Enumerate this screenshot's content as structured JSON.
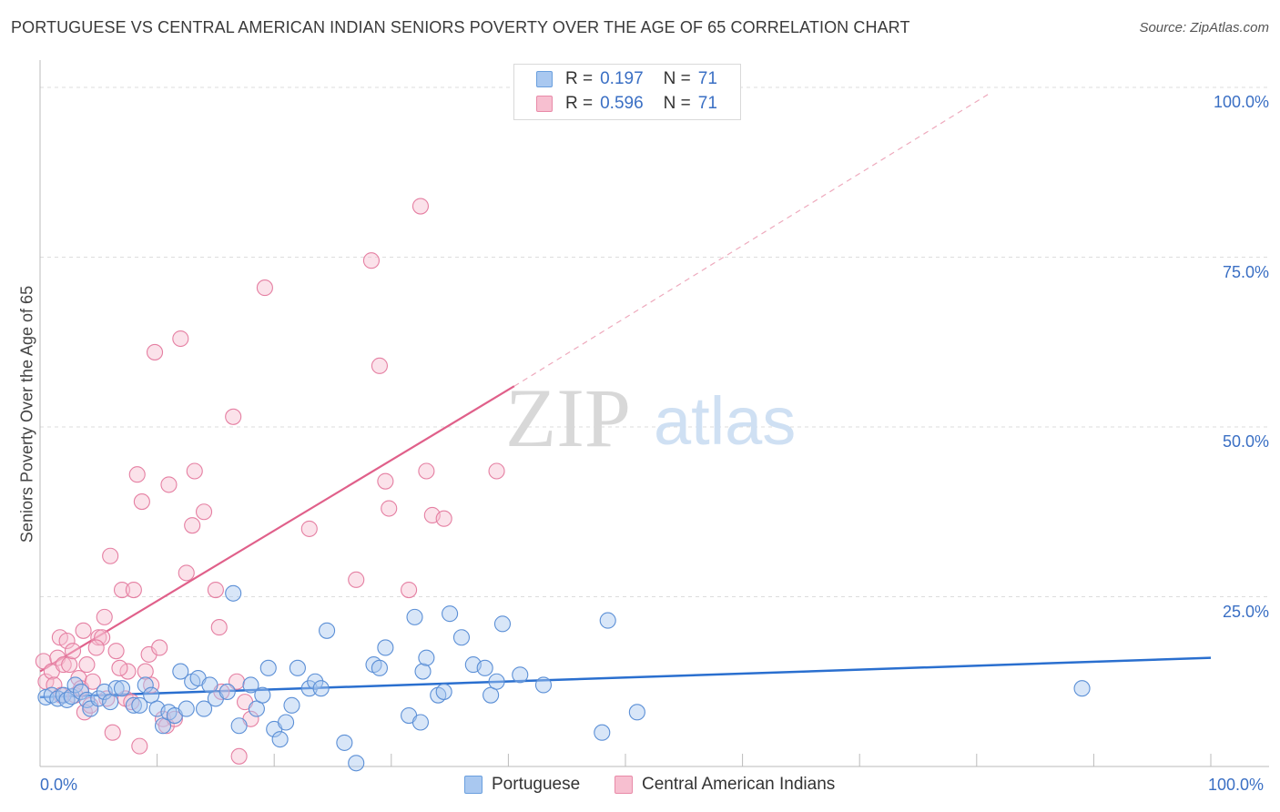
{
  "title": "PORTUGUESE VS CENTRAL AMERICAN INDIAN SENIORS POVERTY OVER THE AGE OF 65 CORRELATION CHART",
  "source": "Source: ZipAtlas.com",
  "watermark": {
    "zip": "ZIP",
    "atlas": "atlas"
  },
  "legend": {
    "rows": [
      {
        "r_label": "R =",
        "r_value": "0.197",
        "n_label": "N =",
        "n_value": "71",
        "color": "#a9c8f0",
        "border": "#6a9fde"
      },
      {
        "r_label": "R =",
        "r_value": "0.596",
        "n_label": "N =",
        "n_value": "71",
        "color": "#f7bfd0",
        "border": "#e88aa8"
      }
    ]
  },
  "bottom_legend": [
    "Portuguese",
    "Central American Indians"
  ],
  "colors": {
    "portuguese_fill": "#a9c8f0",
    "portuguese_stroke": "#5b8fd6",
    "portuguese_line": "#2a6fcf",
    "cai_fill": "#f7bfd0",
    "cai_stroke": "#e57fa2",
    "cai_line": "#e0608a",
    "tick_text": "#3a6fc4",
    "grid": "#dddddd"
  },
  "chart_data": {
    "type": "scatter",
    "title": "PORTUGUESE VS CENTRAL AMERICAN INDIAN SENIORS POVERTY OVER THE AGE OF 65 CORRELATION CHART",
    "xlabel": "",
    "ylabel": "Seniors Poverty Over the Age of 65",
    "xlim": [
      0,
      100
    ],
    "ylim": [
      0,
      100
    ],
    "x_tick_labels": [
      "0.0%",
      "100.0%"
    ],
    "y_tick_labels": [
      "25.0%",
      "50.0%",
      "75.0%",
      "100.0%"
    ],
    "y_ticks": [
      25,
      50,
      75,
      100
    ],
    "grid": true,
    "legend_position": "top-center",
    "series": [
      {
        "name": "Portuguese",
        "trend": {
          "x": [
            0,
            100
          ],
          "y": [
            10.2,
            16.0
          ],
          "dashed_extension": false
        },
        "points": [
          [
            0.5,
            10.2
          ],
          [
            1,
            10.5
          ],
          [
            1.5,
            10
          ],
          [
            2,
            10.5
          ],
          [
            2.3,
            9.8
          ],
          [
            2.7,
            10.3
          ],
          [
            3,
            12
          ],
          [
            3.5,
            11
          ],
          [
            4,
            9.8
          ],
          [
            4.3,
            8.5
          ],
          [
            5,
            10
          ],
          [
            5.5,
            11
          ],
          [
            6,
            9.5
          ],
          [
            6.5,
            11.5
          ],
          [
            7,
            11.5
          ],
          [
            8,
            9
          ],
          [
            8.5,
            9
          ],
          [
            9,
            12
          ],
          [
            9.5,
            10.5
          ],
          [
            10,
            8.5
          ],
          [
            10.5,
            6
          ],
          [
            11,
            8
          ],
          [
            11.5,
            7.5
          ],
          [
            12,
            14
          ],
          [
            12.5,
            8.5
          ],
          [
            13,
            12.5
          ],
          [
            13.5,
            13
          ],
          [
            14,
            8.5
          ],
          [
            14.5,
            12
          ],
          [
            15,
            10
          ],
          [
            16,
            11
          ],
          [
            16.5,
            25.5
          ],
          [
            17,
            6
          ],
          [
            18,
            12
          ],
          [
            18.5,
            8.5
          ],
          [
            19,
            10.5
          ],
          [
            19.5,
            14.5
          ],
          [
            20,
            5.5
          ],
          [
            20.5,
            4
          ],
          [
            21,
            6.5
          ],
          [
            21.5,
            9
          ],
          [
            22,
            14.5
          ],
          [
            23,
            11.5
          ],
          [
            23.5,
            12.5
          ],
          [
            24,
            11.5
          ],
          [
            24.5,
            20
          ],
          [
            26,
            3.5
          ],
          [
            27,
            0.5
          ],
          [
            28.5,
            15
          ],
          [
            29,
            14.5
          ],
          [
            29.5,
            17.5
          ],
          [
            31.5,
            7.5
          ],
          [
            32,
            22
          ],
          [
            32.5,
            6.5
          ],
          [
            32.7,
            14
          ],
          [
            33,
            16
          ],
          [
            34,
            10.5
          ],
          [
            34.5,
            11
          ],
          [
            35,
            22.5
          ],
          [
            36,
            19
          ],
          [
            37,
            15
          ],
          [
            38,
            14.5
          ],
          [
            38.5,
            10.5
          ],
          [
            39,
            12.5
          ],
          [
            39.5,
            21
          ],
          [
            41,
            13.5
          ],
          [
            43,
            12
          ],
          [
            48,
            5
          ],
          [
            48.5,
            21.5
          ],
          [
            51,
            8
          ],
          [
            89,
            11.5
          ]
        ]
      },
      {
        "name": "Central American Indians",
        "trend": {
          "x": [
            0,
            40.5
          ],
          "y": [
            14,
            56
          ],
          "dashed_x": [
            40.5,
            81
          ],
          "dashed_y": [
            56,
            99
          ]
        },
        "points": [
          [
            0.3,
            15.5
          ],
          [
            0.5,
            12.5
          ],
          [
            1,
            14
          ],
          [
            1.2,
            12
          ],
          [
            1.5,
            16
          ],
          [
            1.7,
            19
          ],
          [
            2,
            15
          ],
          [
            2.3,
            18.5
          ],
          [
            2.5,
            15
          ],
          [
            3,
            10.5
          ],
          [
            3.3,
            13
          ],
          [
            3.5,
            11.5
          ],
          [
            3.8,
            8
          ],
          [
            4,
            15
          ],
          [
            4.3,
            9
          ],
          [
            4.5,
            12.5
          ],
          [
            5,
            19
          ],
          [
            5.3,
            19
          ],
          [
            5.7,
            10
          ],
          [
            6,
            31
          ],
          [
            6.2,
            5
          ],
          [
            6.5,
            17
          ],
          [
            7,
            26
          ],
          [
            7.3,
            10
          ],
          [
            7.5,
            14
          ],
          [
            7.8,
            9.5
          ],
          [
            8,
            26
          ],
          [
            8.3,
            43
          ],
          [
            8.5,
            3
          ],
          [
            8.7,
            39
          ],
          [
            9,
            14
          ],
          [
            9.3,
            16.5
          ],
          [
            9.5,
            12
          ],
          [
            9.8,
            61
          ],
          [
            10.2,
            17.5
          ],
          [
            10.5,
            7
          ],
          [
            10.8,
            6
          ],
          [
            11,
            41.5
          ],
          [
            11.5,
            7
          ],
          [
            12,
            63
          ],
          [
            12.5,
            28.5
          ],
          [
            13,
            35.5
          ],
          [
            13.2,
            43.5
          ],
          [
            14,
            37.5
          ],
          [
            15,
            26
          ],
          [
            15.3,
            20.5
          ],
          [
            15.5,
            11
          ],
          [
            16.5,
            51.5
          ],
          [
            16.8,
            12.5
          ],
          [
            17,
            1.5
          ],
          [
            17.5,
            9.5
          ],
          [
            18,
            7
          ],
          [
            19.2,
            70.5
          ],
          [
            23,
            35
          ],
          [
            27,
            27.5
          ],
          [
            28.3,
            74.5
          ],
          [
            29,
            59
          ],
          [
            29.5,
            42
          ],
          [
            29.8,
            38
          ],
          [
            31.5,
            26
          ],
          [
            32.5,
            82.5
          ],
          [
            33,
            43.5
          ],
          [
            33.5,
            37
          ],
          [
            34.5,
            36.5
          ],
          [
            39,
            43.5
          ],
          [
            3.7,
            20
          ],
          [
            5.5,
            22
          ],
          [
            2.8,
            17
          ],
          [
            6.8,
            14.5
          ],
          [
            1.8,
            10.5
          ],
          [
            4.8,
            17.5
          ]
        ]
      }
    ]
  }
}
